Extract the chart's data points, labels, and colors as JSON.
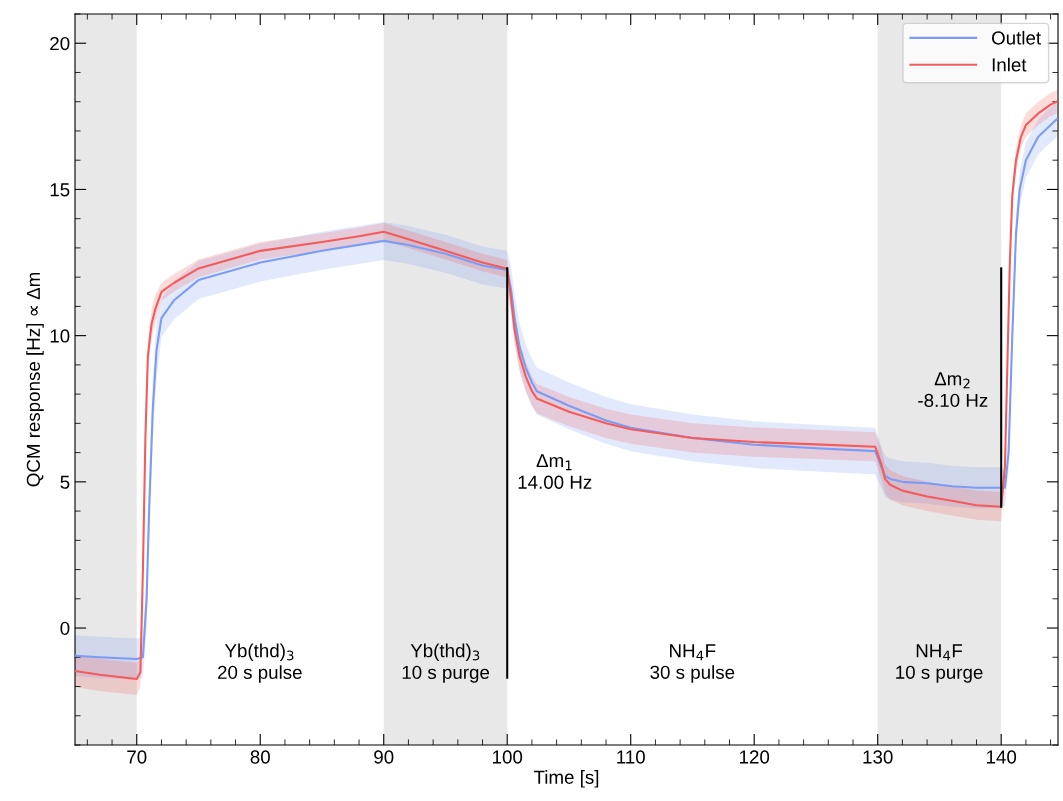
{
  "chart_data": {
    "type": "line",
    "xlabel": "Time [s]",
    "ylabel": "QCM response [Hz] ∝ Δm",
    "xlim": [
      65,
      144.6
    ],
    "xticks": [
      70,
      80,
      90,
      100,
      110,
      120,
      130,
      140
    ],
    "ylim": [
      -4,
      21
    ],
    "yticks": [
      0,
      5,
      10,
      15,
      20
    ],
    "legend": "top right",
    "bands": [
      {
        "axis": "x",
        "from": 65,
        "to": 70,
        "color": "#e8e8e8"
      },
      {
        "axis": "x",
        "from": 90,
        "to": 100,
        "color": "#e8e8e8"
      },
      {
        "axis": "x",
        "from": 130,
        "to": 140,
        "color": "#e8e8e8"
      }
    ],
    "series": [
      {
        "name": "Outlet",
        "color": "#7b9cf5",
        "x": [
          65,
          67,
          70,
          70.5,
          70.8,
          71.0,
          71.3,
          71.6,
          72,
          73,
          75,
          80,
          85,
          90,
          92,
          95,
          98,
          100,
          100.3,
          100.6,
          101,
          101.5,
          102,
          102.4,
          105,
          108,
          110,
          115,
          120,
          125,
          129.8,
          130.3,
          130.6,
          131,
          132,
          134,
          136,
          138,
          140,
          140.3,
          140.6,
          140.9,
          141.2,
          141.5,
          142,
          143,
          144.5
        ],
        "values": [
          -0.95,
          -1.0,
          -1.06,
          -1.0,
          1,
          4,
          7.5,
          9.5,
          10.6,
          11.2,
          11.9,
          12.5,
          12.9,
          13.24,
          13.1,
          12.8,
          12.4,
          12.25,
          11.6,
          10.6,
          9.6,
          8.9,
          8.4,
          8.1,
          7.6,
          7.1,
          6.85,
          6.5,
          6.27,
          6.15,
          6.05,
          5.5,
          5.2,
          5.1,
          5.0,
          4.95,
          4.85,
          4.8,
          4.8,
          4.8,
          6,
          10,
          13.5,
          15,
          16,
          16.8,
          17.4
        ],
        "lower": [
          -1.65,
          -1.7,
          -1.76,
          -1.7,
          0,
          3,
          6.5,
          8.5,
          9.95,
          10.55,
          11.25,
          11.85,
          12.25,
          12.59,
          12.45,
          12.15,
          11.75,
          11.6,
          10.8,
          9.8,
          8.8,
          8.1,
          7.6,
          7.3,
          6.8,
          6.3,
          6.05,
          5.7,
          5.47,
          5.35,
          5.25,
          4.8,
          4.5,
          4.4,
          4.3,
          4.25,
          4.15,
          4.1,
          4.1,
          4.2,
          5.4,
          9.4,
          12.9,
          14.4,
          15.4,
          16.2,
          16.8
        ],
        "upper": [
          -0.25,
          -0.3,
          -0.36,
          -0.3,
          2,
          5,
          8.5,
          10.5,
          11.25,
          11.85,
          12.55,
          13.15,
          13.55,
          13.89,
          13.75,
          13.45,
          13.05,
          12.9,
          12.4,
          11.4,
          10.4,
          9.7,
          9.2,
          8.9,
          8.4,
          7.9,
          7.65,
          7.3,
          7.07,
          6.95,
          6.85,
          6.2,
          5.9,
          5.8,
          5.7,
          5.65,
          5.55,
          5.5,
          5.5,
          5.4,
          6.6,
          10.6,
          14.1,
          15.6,
          16.6,
          17.4,
          18.0
        ]
      },
      {
        "name": "Inlet",
        "color": "#f25c5c",
        "x": [
          65,
          67,
          70,
          70.3,
          70.5,
          70.7,
          70.9,
          71.2,
          71.5,
          72,
          73,
          75,
          80,
          85,
          88,
          90,
          92,
          95,
          98,
          100,
          100.3,
          100.6,
          101,
          101.5,
          102,
          102.4,
          105,
          108,
          110,
          115,
          120,
          125,
          129.8,
          130.3,
          130.6,
          131,
          132,
          134,
          136,
          138,
          140,
          140.3,
          140.5,
          140.7,
          140.9,
          141.2,
          141.6,
          142,
          143,
          144,
          144.5
        ],
        "values": [
          -1.47,
          -1.6,
          -1.74,
          -1.5,
          2,
          6.5,
          9.3,
          10.4,
          10.9,
          11.5,
          11.8,
          12.3,
          12.9,
          13.2,
          13.4,
          13.55,
          13.3,
          12.9,
          12.5,
          12.29,
          11.3,
          10.2,
          9.3,
          8.6,
          8.1,
          7.85,
          7.4,
          7.0,
          6.8,
          6.5,
          6.36,
          6.28,
          6.2,
          5.6,
          5.1,
          4.9,
          4.7,
          4.5,
          4.35,
          4.2,
          4.15,
          5.5,
          9,
          12.5,
          14.8,
          16.0,
          16.8,
          17.2,
          17.6,
          17.9,
          18.0
        ],
        "lower": [
          -2.02,
          -2.15,
          -2.29,
          -2.0,
          1.5,
          6.0,
          8.8,
          9.9,
          10.4,
          11.2,
          11.5,
          12.0,
          12.6,
          12.9,
          13.1,
          13.25,
          13.0,
          12.6,
          12.2,
          11.99,
          10.8,
          9.7,
          8.8,
          8.1,
          7.6,
          7.35,
          6.9,
          6.5,
          6.3,
          6.0,
          5.86,
          5.78,
          5.7,
          5.1,
          4.6,
          4.4,
          4.2,
          4.0,
          3.85,
          3.7,
          3.65,
          5.1,
          8.6,
          12.1,
          14.4,
          15.6,
          16.4,
          16.8,
          17.2,
          17.5,
          17.6
        ],
        "upper": [
          -0.92,
          -1.05,
          -1.19,
          -1.0,
          2.5,
          7.0,
          9.8,
          10.9,
          11.4,
          11.8,
          12.1,
          12.6,
          13.2,
          13.5,
          13.7,
          13.85,
          13.6,
          13.2,
          12.8,
          12.59,
          11.8,
          10.7,
          9.8,
          9.1,
          8.6,
          8.35,
          7.9,
          7.5,
          7.3,
          7.0,
          6.86,
          6.78,
          6.7,
          6.1,
          5.6,
          5.4,
          5.2,
          5.0,
          4.85,
          4.7,
          4.65,
          5.9,
          9.4,
          12.9,
          15.2,
          16.4,
          17.2,
          17.6,
          18.0,
          18.3,
          18.4
        ]
      },
      {
        "color": "#000000",
        "x": [
          100,
          100
        ],
        "values": [
          -1.7,
          12.3
        ]
      },
      {
        "color": "#000000",
        "x": [
          140,
          140
        ],
        "values": [
          4.15,
          12.3
        ]
      }
    ],
    "annotations": [
      "Δm$_{1}$\n14.00 Hz",
      "Δm$_{2}$\n-8.10 Hz",
      "Yb(thd)$_{3}$\n20 s pulse",
      "Yb(thd)$_{3}$\n10 s purge",
      "NH$_{4}$F\n30 s pulse",
      "NH$_{4}$F\n10 s purge"
    ]
  }
}
